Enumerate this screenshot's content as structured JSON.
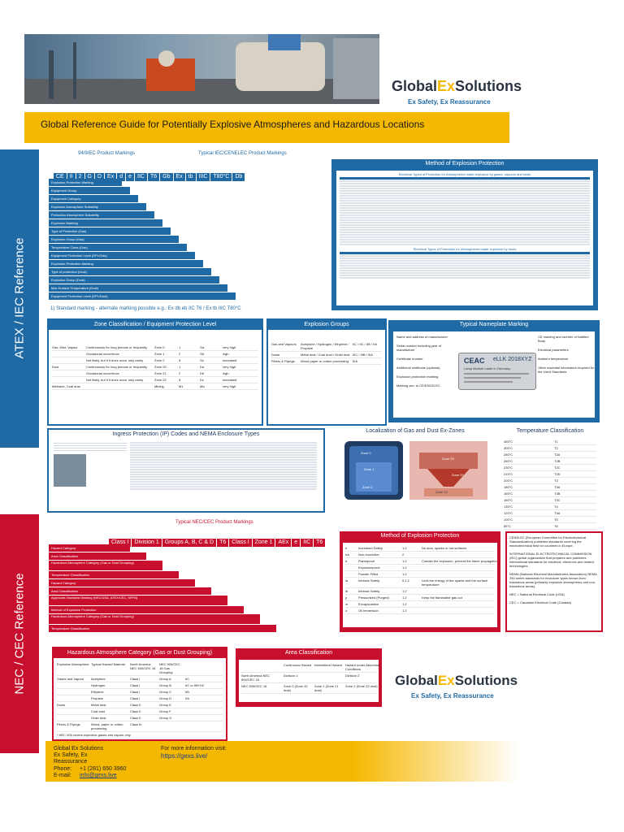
{
  "header": {
    "brand": "GlobalExSolutions",
    "brand_pre": "Global",
    "brand_ex": "Ex",
    "brand_post": "Solutions",
    "tagline": "Ex Safety, Ex Reassurance",
    "title": "Global Reference Guide for Potentially Explosive Atmospheres and Hazardous Locations"
  },
  "atex": {
    "side_label": "ATEX / IEC Reference",
    "markings_title": "94/9/EC Product Markings",
    "iec_markings_title": "Typical IEC/CENELEC Product Markings",
    "markings": [
      "CE",
      "II",
      "2",
      "G",
      "D",
      "Ex",
      "d",
      "e",
      "IIC",
      "T6",
      "Gb",
      "Ex",
      "tb",
      "IIIC",
      "T80°C",
      "Db"
    ],
    "marking_labels": [
      "Explosion Protection Marking",
      "Equipment Group",
      "Equipment Category",
      "Explosive Atmosphere Suitability",
      "Protection Atmosphere Suitability",
      "Explosion Marking",
      "Type of Protection (Gas)",
      "Explosion Group (Gas)",
      "Temperature Class (Gas)",
      "Equipment Protection Level (EPL/Gas)",
      "Explosion Protection Marking",
      "Type of protection (Dust)",
      "Explosion Group (Dust)",
      "Max Surface Temperature (Dust)",
      "Equipment Protection Level (EPL/Dust)"
    ],
    "note": "1) Standard marking - alternate marking possible e.g.: Ex db eb IIC T6 / Ex tb IIIC T80°C",
    "method_title": "Method of Explosion Protection",
    "method_gas_title": "Electrical Types of Protection for Atmospheres made explosive by gases, vapours and mists",
    "method_dust_title": "Electrical Types of Protection for Atmospheres made explosive by dusts",
    "zone_title": "Zone Classification / Equipment Protection Level",
    "zone_rows": [
      [
        "Gas, Mist, Vapour",
        "Continuously for long periods or frequently",
        "Zone 0",
        "1",
        "Ga",
        "very high"
      ],
      [
        "",
        "Occasional occurrence",
        "Zone 1",
        "2",
        "Gb",
        "high"
      ],
      [
        "",
        "Not likely, but if it does occur only rarely",
        "Zone 2",
        "3",
        "Gc",
        "increased"
      ],
      [
        "Dust",
        "Continuously for long periods or frequently",
        "Zone 20",
        "1",
        "Da",
        "very high"
      ],
      [
        "",
        "Occasional occurrence",
        "Zone 21",
        "2",
        "Db",
        "high"
      ],
      [
        "",
        "Not likely, but if it does occur only rarely",
        "Zone 22",
        "3",
        "Dc",
        "increased"
      ],
      [
        "Methane, Coal dust",
        "",
        "Mining",
        "M1",
        "Ma",
        "very high"
      ]
    ],
    "explosion_title": "Explosion Groups",
    "explosion_rows": [
      [
        "Gas and Vapours",
        "Acetylene / Hydrogen / Ethylene / Propane",
        "IIC / IIC / IIB / IIA"
      ],
      [
        "Dusts",
        "Metal dust / Coal dust / Grain dust",
        "IIIC / IIIB / IIIA"
      ],
      [
        "Fibers & Flyings",
        "Wood paper or cotton processing",
        "IIIA"
      ]
    ],
    "nameplate_title": "Typical Nameplate Marking",
    "nameplate_brand": "CEAC",
    "nameplate_model": "eLLK 2018XYZ",
    "nameplate_subtitle": "Lamp Module made in Germany",
    "nameplate_labels": [
      "Name and address of manufacturer",
      "Serial number including year of manufacture",
      "Certificate number",
      "Additional certificate (optional)",
      "Explosion protection marking",
      "Marking acc. to CE/ENCELEC",
      "CE marking and number of Notified Body",
      "Electrical parameters",
      "Ambient temperature",
      "Other essential information required for the Used Standards"
    ],
    "ip_title": "Ingress Protection (IP) Codes and NEMA Enclosure Types",
    "localization_title": "Localization of Gas and Dust Ex-Zones",
    "zones": [
      "Zone 0",
      "Zone 1",
      "Zone 2",
      "Zone 20",
      "Zone 21",
      "Zone 22"
    ],
    "temp_title": "Temperature Classification",
    "temp_rows": [
      [
        "450°C",
        "T1"
      ],
      [
        "300°C",
        "T2"
      ],
      [
        "280°C",
        "T2A"
      ],
      [
        "260°C",
        "T2B"
      ],
      [
        "230°C",
        "T2C"
      ],
      [
        "215°C",
        "T2D"
      ],
      [
        "200°C",
        "T3"
      ],
      [
        "180°C",
        "T3A"
      ],
      [
        "165°C",
        "T3B"
      ],
      [
        "160°C",
        "T3C"
      ],
      [
        "135°C",
        "T4"
      ],
      [
        "120°C",
        "T4A"
      ],
      [
        "100°C",
        "T5"
      ],
      [
        "85°C",
        "T6"
      ]
    ]
  },
  "nec": {
    "side_label": "NEC / CEC Reference",
    "markings_title": "Typical NEC/CEC Product Markings",
    "markings": [
      "Class I",
      "Division 1",
      "Groups A, B, C & D",
      "T6",
      "Class I",
      "Zone 1",
      "AEx",
      "e",
      "IIC",
      "T6"
    ],
    "marking_labels": [
      "Hazard Category",
      "Area Classification",
      "Hazardous Atmosphere Category (Gas or Dust Grouping)",
      "Temperature Classification",
      "Hazard Category",
      "Area Classification",
      "Approvals Standard Marking (NEC/USA, ATEX/CEC, NFPA)",
      "Method of Explosion Protection",
      "Hazardous Atmosphere Category (Gas or Dust Grouping)",
      "Temperature Classification"
    ],
    "method_title": "Method of Explosion Protection",
    "method_rows": [
      [
        "e",
        "Increased Safety",
        "1,2",
        "No arcs, sparks or hot surfaces"
      ],
      [
        "nA",
        "Non-incendive",
        "2",
        ""
      ],
      [
        "d",
        "Flameproof",
        "1,2",
        "Contain the explosion, prevent the flame propagation"
      ],
      [
        "",
        "Explosionproof",
        "1,2",
        ""
      ],
      [
        "",
        "Powder Filled",
        "1,2",
        ""
      ],
      [
        "ia",
        "Intrinsic Safety",
        "0,1,2",
        "Limit the energy of the sparks and the surface temperature"
      ],
      [
        "ib",
        "Intrinsic Safety",
        "1,2",
        ""
      ],
      [
        "p",
        "Pressurized (Purged)",
        "1,2",
        "Keep the flammable gas out"
      ],
      [
        "m",
        "Encapsulation",
        "1,2",
        ""
      ],
      [
        "o",
        "Oil Immersion",
        "1,2",
        ""
      ]
    ],
    "orgs": [
      "CENELEC (European Committee for Electrotechnical Standardization) publishes standards covering the electrotechnical field for countries in Europe.",
      "INTERNATIONAL ELECTROTECHNICAL COMMISSION (IEC) global organization that prepares and publishes International standards for electrical, electronic and related technologies.",
      "NEMA (National Electrical Manufacturers Association) NEMA 250 series standards for enclosure types known from hazardous areas (primarily explosive atmospheres and non-hazardous areas).",
      "NEC = National Electrical Code (USA)",
      "CEC = Canadian Electrical Code (Canada)"
    ],
    "hazard_title": "Hazardous Atmosphere Category (Gas or Dust Grouping)",
    "hazard_headers": [
      "Explosive Atmosphere",
      "Typical Hazard Material",
      "North America NEC 500/CEC 18",
      "NEC 505/CEC 18 Gas Grouping"
    ],
    "hazard_rows": [
      [
        "Gases and Vapors",
        "Acetylene",
        "Class I",
        "Group A",
        "IIC"
      ],
      [
        "",
        "Hydrogen",
        "Class I",
        "Group B",
        "IIC or IIB+H2"
      ],
      [
        "",
        "Ethylene",
        "Class I",
        "Group C",
        "IIB"
      ],
      [
        "",
        "Propane",
        "Class I",
        "Group D",
        "IIA"
      ],
      [
        "Dusts",
        "Metal dust",
        "Class II",
        "Group E",
        ""
      ],
      [
        "",
        "Coal dust",
        "Class II",
        "Group F",
        ""
      ],
      [
        "",
        "Grain dust",
        "Class II",
        "Group G",
        ""
      ],
      [
        "Fibers & Flyings",
        "Wood, paper or cotton processing",
        "Class III",
        "",
        ""
      ]
    ],
    "hazard_note": "* NEC 505 covers explosive gases and vapors only",
    "area_title": "Area Classification",
    "area_headers": [
      "",
      "Continuous Hazard",
      "Intermittent Hazard",
      "Hazard under Abnormal Conditions"
    ],
    "area_rows": [
      [
        "North America NEC 500/CEC 18",
        "Division 1",
        "",
        "Division 2"
      ],
      [
        "NEC 505/CEC 18",
        "Zone 0 (Zone 20 dust)",
        "Zone 1 (Zone 21 dust)",
        "Zone 2 (Zone 22 dust)"
      ]
    ]
  },
  "footer": {
    "company": "Global Ex Solutions",
    "tagline_line1": "Ex Safety, Ex",
    "tagline_line2": "Reassurance",
    "phone_label": "Phone:",
    "phone": "+1 (281) 650 3960",
    "email_label": "E-mail:",
    "email": "info@gexs.live",
    "more_label": "For more information visit:",
    "website": "https://gexs.live/"
  },
  "colors": {
    "blue": "#1f6aa5",
    "red": "#c8102e",
    "yellow": "#f5b800",
    "orange_accent": "#f39c12"
  }
}
